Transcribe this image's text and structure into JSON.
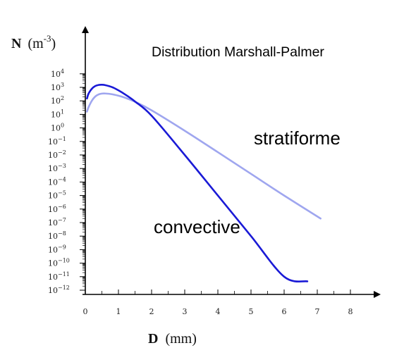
{
  "chart_data": {
    "type": "line",
    "title": "Distribution Marshall-Palmer",
    "ylabel": "N (m-3)",
    "ylabel_parts": {
      "symbol": "N",
      "unit_open": "(m",
      "unit_exp": "-3",
      "unit_close": ")"
    },
    "xlabel": "D (mm)",
    "xlabel_parts": {
      "symbol": "D",
      "unit": "(mm)"
    },
    "x_ticks": [
      0,
      1,
      2,
      3,
      4,
      5,
      6,
      7,
      8
    ],
    "y_tick_exponents": [
      4,
      3,
      2,
      1,
      0,
      -1,
      -2,
      -3,
      -4,
      -5,
      -6,
      -7,
      -8,
      -9,
      -10,
      -11,
      -12
    ],
    "y_scale": "log10",
    "xlim": [
      0,
      8.3
    ],
    "ylim_exponent": [
      -12,
      4.3
    ],
    "grid": false,
    "series": [
      {
        "name": "stratiforme",
        "color": "#9fa6ef",
        "x": [
          0.05,
          0.1,
          0.2,
          0.3,
          0.4,
          0.5,
          0.6,
          0.8,
          1.0,
          1.2,
          1.5,
          2.0,
          3.0,
          4.0,
          5.0,
          6.0,
          7.1
        ],
        "y": [
          16.0,
          35.0,
          105.0,
          210.0,
          300.0,
          345.0,
          350.0,
          310.0,
          240.0,
          170.0,
          86.0,
          20.0,
          0.62,
          0.016,
          0.0004,
          1e-05,
          2e-07
        ]
      },
      {
        "name": "convective",
        "color": "#1a1ad6",
        "x": [
          0.05,
          0.1,
          0.2,
          0.3,
          0.4,
          0.5,
          0.6,
          0.8,
          1.0,
          1.2,
          1.5,
          2.0,
          3.0,
          4.0,
          5.0,
          6.0,
          6.7
        ],
        "y": [
          150.0,
          350.0,
          800.0,
          1250.0,
          1500.0,
          1550.0,
          1450.0,
          1050.0,
          600.0,
          300.0,
          90.0,
          8.0,
          0.01,
          1e-05,
          1e-08,
          1e-11,
          4.5e-12
        ]
      }
    ],
    "annotations": [
      "stratiforme",
      "convective"
    ]
  }
}
